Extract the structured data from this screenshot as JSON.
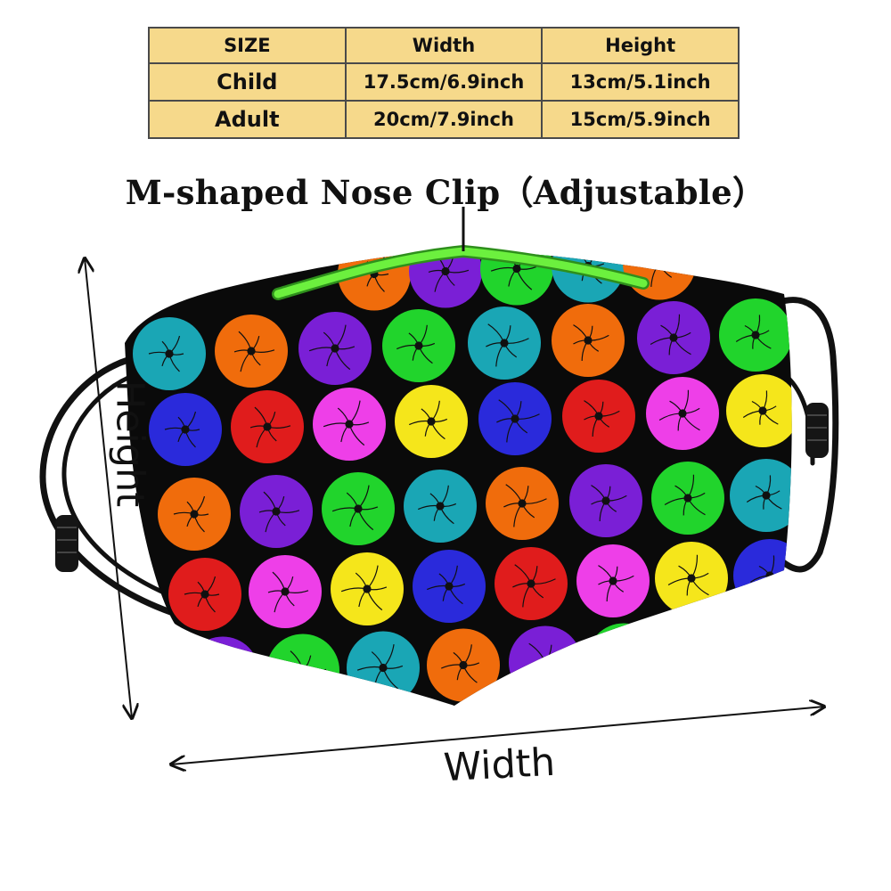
{
  "size_table": {
    "headers": [
      "SIZE",
      "Width",
      "Height"
    ],
    "rows": [
      {
        "size": "Child",
        "width": "17.5cm/6.9inch",
        "height": "13cm/5.1inch"
      },
      {
        "size": "Adult",
        "width": "20cm/7.9inch",
        "height": "15cm/5.9inch"
      }
    ]
  },
  "title": "M-shaped Nose Clip（Adjustable）",
  "labels": {
    "height": "Height",
    "width": "Width"
  },
  "colors": {
    "table_bg": "#f6d98b",
    "mask_bg": "#0a0a0a",
    "nose_clip": "#5be835",
    "dot_palette": [
      "#1aa6b5",
      "#e01c1c",
      "#21d42c",
      "#2a2adb",
      "#7a1fd6",
      "#f5e61b",
      "#f06c0c",
      "#ee3fe8"
    ]
  },
  "icons": [
    "neuron-dot-icon",
    "arrow-icon",
    "ear-loop-icon",
    "nose-clip-icon"
  ]
}
